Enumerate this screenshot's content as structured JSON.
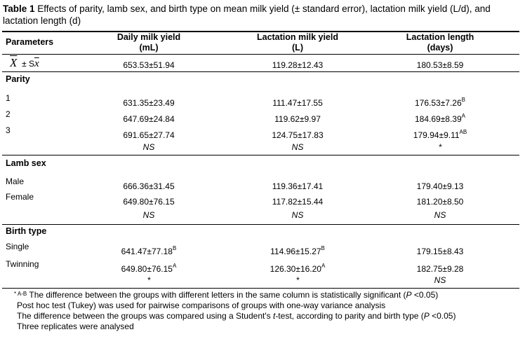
{
  "caption": {
    "label": "Table 1",
    "text": "Effects of parity, lamb sex, and birth type on mean milk yield (± standard error), lactation milk yield (L/d), and lactation length (d)"
  },
  "headers": {
    "parameters": "Parameters",
    "daily": [
      "Daily milk yield",
      "(mL)"
    ],
    "lactation": [
      "Lactation milk yield",
      "(L)"
    ],
    "length": [
      "Lactation length",
      "(days)"
    ]
  },
  "mean_row": {
    "symbol": "X",
    "pm": "± S",
    "sym2": "x",
    "values": [
      "653.53±51.94",
      "119.28±12.43",
      "180.53±8.59"
    ]
  },
  "groups": [
    {
      "title": "Parity",
      "rows": [
        {
          "label": "1",
          "values": [
            [
              "631.35±23.49",
              ""
            ],
            [
              "111.47±17.55",
              ""
            ],
            [
              "176.53±7.26",
              "B"
            ]
          ]
        },
        {
          "label": "2",
          "values": [
            [
              "647.69±24.84",
              ""
            ],
            [
              "119.62±9.97",
              ""
            ],
            [
              "184.69±8.39",
              "A"
            ]
          ]
        },
        {
          "label": "3",
          "values": [
            [
              "691.65±27.74",
              ""
            ],
            [
              "124.75±17.83",
              ""
            ],
            [
              "179.94±9.11",
              "AB"
            ]
          ]
        }
      ],
      "sig": [
        "NS",
        "NS",
        "*"
      ]
    },
    {
      "title": "Lamb sex",
      "rows": [
        {
          "label": "Male",
          "values": [
            [
              "666.36±31.45",
              ""
            ],
            [
              "119.36±17.41",
              ""
            ],
            [
              "179.40±9.13",
              ""
            ]
          ]
        },
        {
          "label": "Female",
          "values": [
            [
              "649.80±76.15",
              ""
            ],
            [
              "117.82±15.44",
              ""
            ],
            [
              "181.20±8.50",
              ""
            ]
          ]
        }
      ],
      "sig": [
        "NS",
        "NS",
        "NS"
      ]
    },
    {
      "title": "Birth type",
      "rows": [
        {
          "label": "Single",
          "values": [
            [
              "641.47±77.18",
              "B"
            ],
            [
              "114.96±15.27",
              "B"
            ],
            [
              "179.15±8.43",
              ""
            ]
          ]
        },
        {
          "label": "Twinning",
          "values": [
            [
              "649.80±76.15",
              "A"
            ],
            [
              "126.30±16.20",
              "A"
            ],
            [
              "182.75±9.28",
              ""
            ]
          ]
        }
      ],
      "sig": [
        "*",
        "*",
        "NS"
      ]
    }
  ],
  "footnotes": {
    "sup": "* A-B",
    "line1": "The difference between the groups with different letters in the same column is statistically significant (",
    "p": "P",
    "line1_end": " <0.05)",
    "line2": "Post hoc test (Tukey) was used for pairwise comparisons of groups with one-way variance analysis",
    "line3a": "The difference between the groups was compared using a Student's ",
    "t": "t",
    "line3b": "-test, according to parity and birth type (",
    "line3c": " <0.05)",
    "line4": "Three replicates were analysed"
  }
}
